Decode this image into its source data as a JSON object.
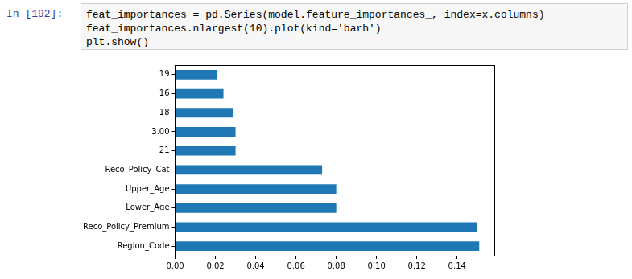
{
  "cell": {
    "prompt": "In [192]:",
    "code": [
      "feat_importances = pd.Series(model.feature_importances_, index=x.columns)",
      "feat_importances.nlargest(10).plot(kind='barh')",
      "plt.show()"
    ]
  },
  "chart_data": {
    "type": "bar",
    "orientation": "horizontal",
    "categories": [
      "Region_Code",
      "Reco_Policy_Premium",
      "Lower_Age",
      "Upper_Age",
      "Reco_Policy_Cat",
      "21",
      "3.00",
      "18",
      "16",
      "19"
    ],
    "values": [
      0.151,
      0.15,
      0.08,
      0.08,
      0.073,
      0.03,
      0.03,
      0.029,
      0.024,
      0.021
    ],
    "color": "#1f77b4",
    "xlim": [
      0,
      0.1585
    ],
    "xticks": [
      {
        "value": 0,
        "label": "0.00"
      },
      {
        "value": 0.02,
        "label": "0.02"
      },
      {
        "value": 0.04,
        "label": "0.04"
      },
      {
        "value": 0.06,
        "label": "0.06"
      },
      {
        "value": 0.08,
        "label": "0.08"
      },
      {
        "value": 0.1,
        "label": "0.10"
      },
      {
        "value": 0.12,
        "label": "0.12"
      },
      {
        "value": 0.14,
        "label": "0.14"
      }
    ],
    "grid": false
  }
}
